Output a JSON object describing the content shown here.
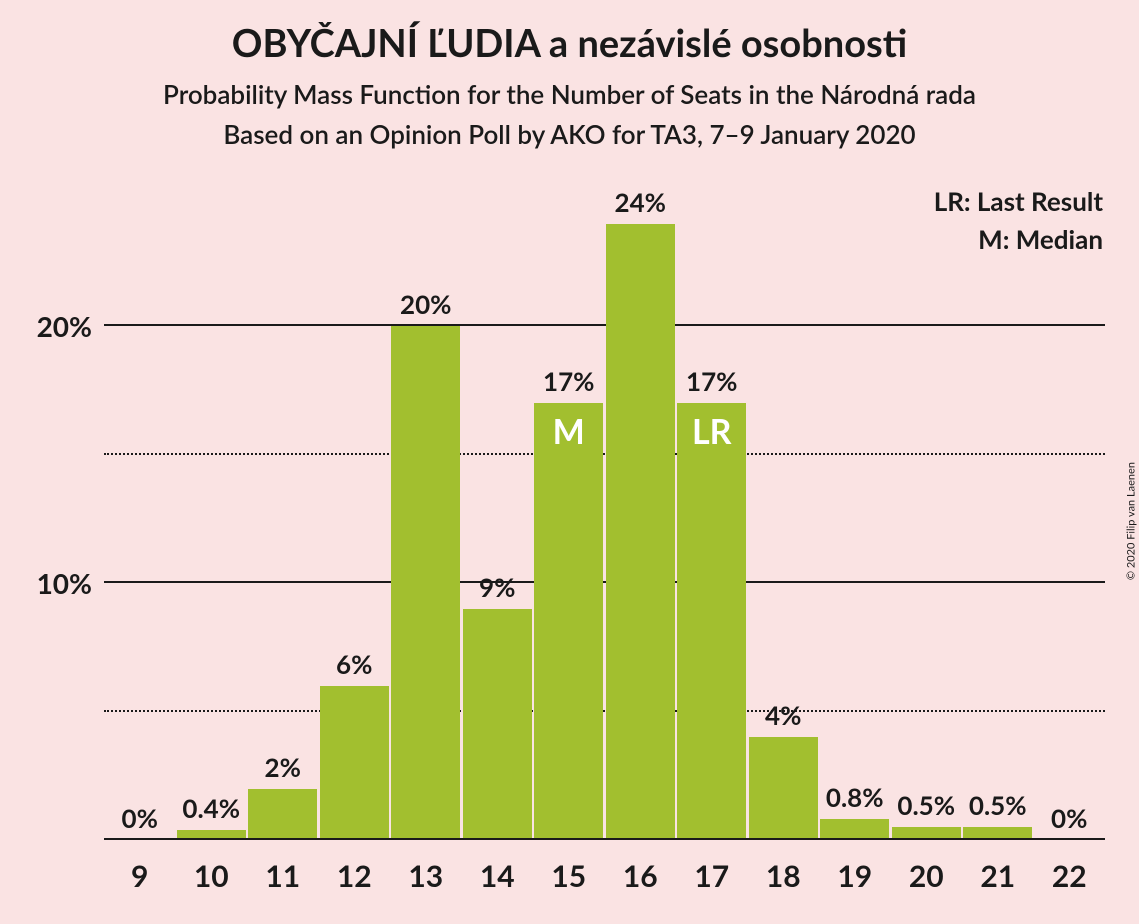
{
  "background_color": "#fae3e3",
  "text_color": "#1a1a1a",
  "copyright": "© 2020 Filip van Laenen",
  "titles": {
    "main": "OBYČAJNÍ ĽUDIA a nezávislé osobnosti",
    "sub1": "Probability Mass Function for the Number of Seats in the Národná rada",
    "sub2": "Based on an Opinion Poll by AKO for TA3, 7–9 January 2020"
  },
  "legend": {
    "lr": "LR: Last Result",
    "m": "M: Median"
  },
  "chart": {
    "type": "bar",
    "bar_color": "#a2bf2f",
    "grid_color": "#1a1a1a",
    "marker_text_color": "#ffffff",
    "ylim_max": 25.5,
    "y_ticks_major": [
      10,
      20
    ],
    "y_ticks_minor": [
      5,
      15
    ],
    "y_tick_labels": [
      "10%",
      "20%"
    ],
    "categories": [
      "9",
      "10",
      "11",
      "12",
      "13",
      "14",
      "15",
      "16",
      "17",
      "18",
      "19",
      "20",
      "21",
      "22"
    ],
    "values": [
      0,
      0.4,
      2,
      6,
      20,
      9,
      17,
      24,
      17,
      4,
      0.8,
      0.5,
      0.5,
      0
    ],
    "value_labels": [
      "0%",
      "0.4%",
      "2%",
      "6%",
      "20%",
      "9%",
      "17%",
      "24%",
      "17%",
      "4%",
      "0.8%",
      "0.5%",
      "0.5%",
      "0%"
    ],
    "markers": {
      "15": "M",
      "17": "LR"
    }
  }
}
